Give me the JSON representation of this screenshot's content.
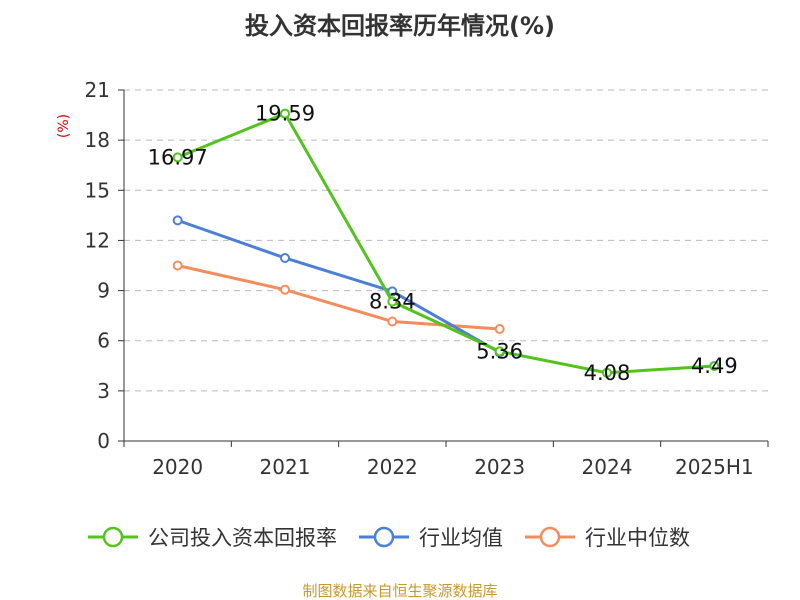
{
  "chart_data": {
    "type": "line",
    "title": "投入资本回报率历年情况(%)",
    "ylabel": "(%)",
    "xlabel": "",
    "categories": [
      "2020",
      "2021",
      "2022",
      "2023",
      "2024",
      "2025H1"
    ],
    "ylim": [
      0,
      21
    ],
    "yticks": [
      0,
      3,
      6,
      9,
      12,
      15,
      18,
      21
    ],
    "grid": "horizontal-dashed",
    "legend_position": "bottom",
    "series": [
      {
        "name": "公司投入资本回报率",
        "color": "#52c41a",
        "values": [
          16.97,
          19.59,
          8.34,
          5.36,
          4.08,
          4.49
        ],
        "labels": [
          "16.97",
          "19.59",
          "8.34",
          "5.36",
          "4.08",
          "4.49"
        ]
      },
      {
        "name": "行业均值",
        "color": "#4a7fdc",
        "values": [
          13.2,
          10.95,
          8.95,
          5.3,
          null,
          null
        ]
      },
      {
        "name": "行业中位数",
        "color": "#f58c5b",
        "values": [
          10.5,
          9.05,
          7.15,
          6.7,
          null,
          null
        ]
      }
    ]
  },
  "footer": {
    "source": "制图数据来自恒生聚源数据库"
  }
}
